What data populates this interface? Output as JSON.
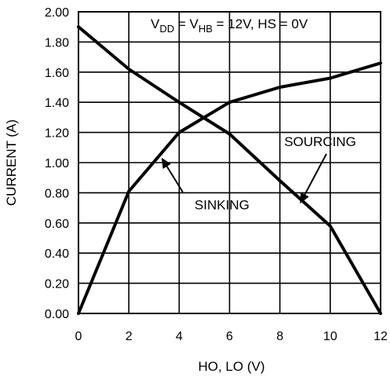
{
  "chart_data": {
    "type": "line",
    "title": "",
    "condition": {
      "parts": [
        {
          "text": "V",
          "sub": false
        },
        {
          "text": "DD",
          "sub": true
        },
        {
          "text": " = V",
          "sub": false
        },
        {
          "text": "HB",
          "sub": true
        },
        {
          "text": " = 12V, HS = 0V",
          "sub": false
        }
      ]
    },
    "xlabel": "HO, LO (V)",
    "ylabel": "CURRENT (A)",
    "xlim": [
      0,
      12
    ],
    "ylim": [
      0,
      2.0
    ],
    "xticks": [
      "0",
      "2",
      "4",
      "6",
      "8",
      "10",
      "12"
    ],
    "yticks": [
      "0.00",
      "0.20",
      "0.40",
      "0.60",
      "0.80",
      "1.00",
      "1.20",
      "1.40",
      "1.60",
      "1.80",
      "2.00"
    ],
    "grid": true,
    "series": [
      {
        "name": "SINKING",
        "x": [
          0,
          2,
          4,
          6,
          8,
          10,
          12
        ],
        "y": [
          0.0,
          0.81,
          1.2,
          1.4,
          1.5,
          1.56,
          1.66
        ]
      },
      {
        "name": "SOURCING",
        "x": [
          0,
          2,
          4,
          6,
          8,
          10,
          12
        ],
        "y": [
          1.9,
          1.62,
          1.4,
          1.19,
          0.88,
          0.58,
          0.0
        ]
      }
    ],
    "annotations": [
      {
        "text": "SINKING",
        "target_series": "SINKING",
        "target_x": 3.3,
        "label_x": 5.7,
        "label_y": 0.69
      },
      {
        "text": "SOURCING",
        "target_series": "SOURCING",
        "target_x": 8.8,
        "label_x": 9.6,
        "label_y": 1.11
      }
    ]
  }
}
